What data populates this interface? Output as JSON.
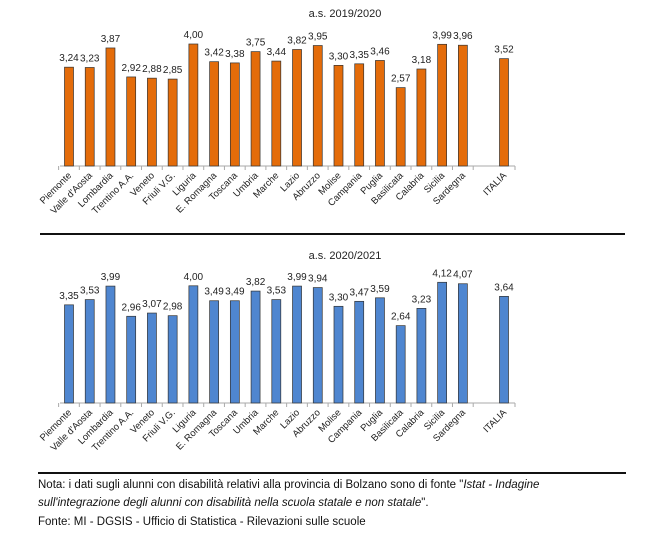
{
  "chart_data": [
    {
      "type": "bar",
      "title": "a.s. 2019/2020",
      "color": "#E46C0A",
      "categories": [
        "Piemonte",
        "Valle d'Aosta",
        "Lombardia",
        "Trentino A.A.",
        "Veneto",
        "Friuli V.G.",
        "Liguria",
        "E. Romagna",
        "Toscana",
        "Umbria",
        "Marche",
        "Lazio",
        "Abruzzo",
        "Molise",
        "Campania",
        "Puglia",
        "Basilicata",
        "Calabria",
        "Sicilia",
        "Sardegna",
        "ITALIA"
      ],
      "values": [
        3.24,
        3.23,
        3.87,
        2.92,
        2.88,
        2.85,
        4.0,
        3.42,
        3.38,
        3.75,
        3.44,
        3.82,
        3.95,
        3.3,
        3.35,
        3.46,
        2.57,
        3.18,
        3.99,
        3.96,
        3.52
      ],
      "labels": [
        "3,24",
        "3,23",
        "3,87",
        "2,92",
        "2,88",
        "2,85",
        "4,00",
        "3,42",
        "3,38",
        "3,75",
        "3,44",
        "3,82",
        "3,95",
        "3,30",
        "3,35",
        "3,46",
        "2,57",
        "3,18",
        "3,99",
        "3,96",
        "3,52"
      ]
    },
    {
      "type": "bar",
      "title": "a.s. 2020/2021",
      "color": "#4F86D0",
      "categories": [
        "Piemonte",
        "Valle d'Aosta",
        "Lombardia",
        "Trentino A.A.",
        "Veneto",
        "Friuli V.G.",
        "Liguria",
        "E. Romagna",
        "Toscana",
        "Umbria",
        "Marche",
        "Lazio",
        "Abruzzo",
        "Molise",
        "Campania",
        "Puglia",
        "Basilicata",
        "Calabria",
        "Sicilia",
        "Sardegna",
        "ITALIA"
      ],
      "values": [
        3.35,
        3.53,
        3.99,
        2.96,
        3.07,
        2.98,
        4.0,
        3.49,
        3.49,
        3.82,
        3.53,
        3.99,
        3.94,
        3.3,
        3.47,
        3.59,
        2.64,
        3.23,
        4.12,
        4.07,
        3.64
      ],
      "labels": [
        "3,35",
        "3,53",
        "3,99",
        "2,96",
        "3,07",
        "2,98",
        "4,00",
        "3,49",
        "3,49",
        "3,82",
        "3,53",
        "3,99",
        "3,94",
        "3,30",
        "3,47",
        "3,59",
        "2,64",
        "3,23",
        "4,12",
        "4,07",
        "3,64"
      ]
    }
  ],
  "notes": {
    "line1_prefix": "Nota: i dati sugli alunni con disabilità relativi alla provincia di Bolzano sono di fonte \"",
    "line1_italic": "Istat - Indagine",
    "line2_italic": "sull'integrazione degli alunni con disabilità nella scuola statale e non statale",
    "line2_suffix": "\".",
    "source": "Fonte: MI - DGSIS - Ufficio di Statistica - Rilevazioni sulle scuole"
  }
}
